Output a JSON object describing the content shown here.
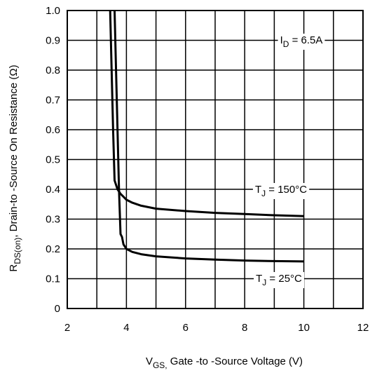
{
  "chart_data": {
    "type": "line",
    "xlabel": {
      "v": "V",
      "sub": "GS,",
      "rest": " Gate -to -Source Voltage  (V)"
    },
    "ylabel": {
      "r": "R",
      "sub": "DS(on)",
      "rest": ",  Drain-to -Source On Resistance    (Ω)"
    },
    "xlim": [
      2,
      12
    ],
    "ylim": [
      0,
      1.0
    ],
    "xticks": [
      "2",
      "4",
      "6",
      "8",
      "10",
      "12"
    ],
    "xtick_values": [
      2,
      4,
      6,
      8,
      10,
      12
    ],
    "yticks": [
      "0",
      "0.1",
      "0.2",
      "0.3",
      "0.4",
      "0.5",
      "0.6",
      "0.7",
      "0.8",
      "0.9",
      "1.0"
    ],
    "ytick_values": [
      0,
      0.1,
      0.2,
      0.3,
      0.4,
      0.5,
      0.6,
      0.7,
      0.8,
      0.9,
      1.0
    ],
    "grid_x": [
      3,
      4,
      5,
      6,
      7,
      8,
      9,
      10,
      11
    ],
    "grid_y": [
      0.1,
      0.2,
      0.3,
      0.4,
      0.5,
      0.6,
      0.7,
      0.8,
      0.9
    ],
    "series": [
      {
        "name_main": "T",
        "name_sub": "J",
        "name_rest": " = 150°C",
        "x": [
          3.45,
          3.5,
          3.55,
          3.6,
          3.65,
          3.7,
          3.8,
          3.9,
          4.0,
          4.2,
          4.5,
          5.0,
          6.0,
          7.0,
          8.0,
          9.0,
          10.0
        ],
        "y": [
          1.0,
          0.8,
          0.6,
          0.43,
          0.415,
          0.4,
          0.385,
          0.375,
          0.365,
          0.355,
          0.345,
          0.335,
          0.327,
          0.321,
          0.317,
          0.313,
          0.31
        ]
      },
      {
        "name_main": "T",
        "name_sub": "J",
        "name_rest": " = 25°C",
        "x": [
          3.6,
          3.65,
          3.7,
          3.75,
          3.8,
          3.85,
          3.9,
          4.0,
          4.2,
          4.5,
          5.0,
          6.0,
          7.0,
          8.0,
          9.0,
          10.0
        ],
        "y": [
          1.0,
          0.8,
          0.6,
          0.4,
          0.25,
          0.24,
          0.215,
          0.2,
          0.19,
          0.182,
          0.175,
          0.168,
          0.164,
          0.161,
          0.159,
          0.158
        ]
      }
    ],
    "annotations": {
      "id_main": "I",
      "id_sub": "D",
      "id_rest": " = 6.5A"
    },
    "grid": true,
    "legend": "inline-labels"
  }
}
